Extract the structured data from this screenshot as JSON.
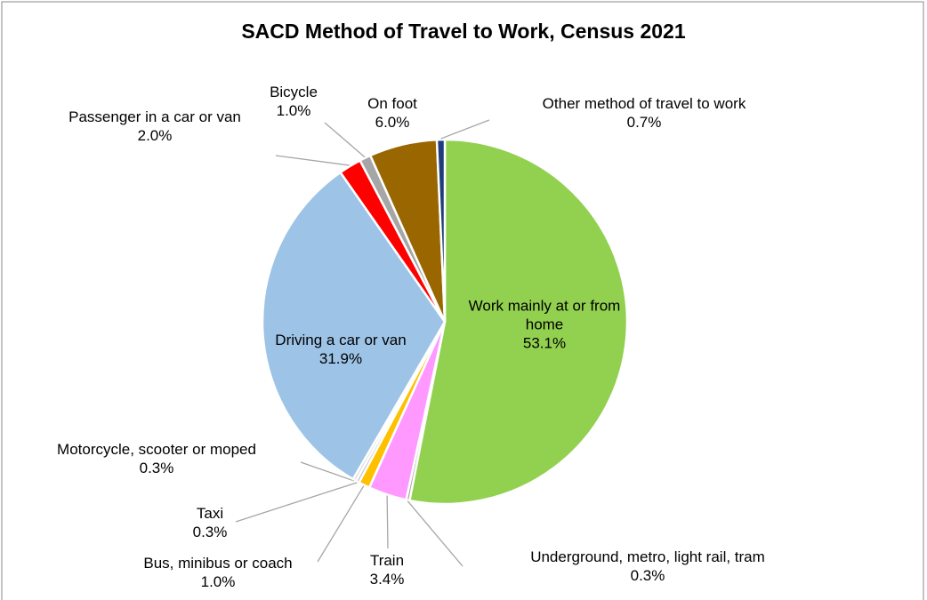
{
  "chart_data": {
    "type": "pie",
    "title": "SACD Method of Travel to Work, Census 2021",
    "categories": [
      "Work mainly at or from home",
      "Underground, metro, light rail, tram",
      "Train",
      "Bus, minibus or coach",
      "Taxi",
      "Motorcycle, scooter or moped",
      "Driving a car or van",
      "Passenger in a car or van",
      "Bicycle",
      "On foot",
      "Other method of travel to work"
    ],
    "values": [
      53.1,
      0.3,
      3.4,
      1.0,
      0.3,
      0.3,
      31.9,
      2.0,
      1.0,
      6.0,
      0.7
    ],
    "value_labels": [
      "53.1%",
      "0.3%",
      "3.4%",
      "1.0%",
      "0.3%",
      "0.3%",
      "31.9%",
      "2.0%",
      "1.0%",
      "6.0%",
      "0.7%"
    ],
    "colors": [
      "#92d050",
      "#a6a6a6",
      "#ff99ff",
      "#ffc000",
      "#bfbfbf",
      "#d9d9d9",
      "#9dc3e6",
      "#ff0000",
      "#a6a6a6",
      "#996600",
      "#1f3d7a"
    ]
  }
}
